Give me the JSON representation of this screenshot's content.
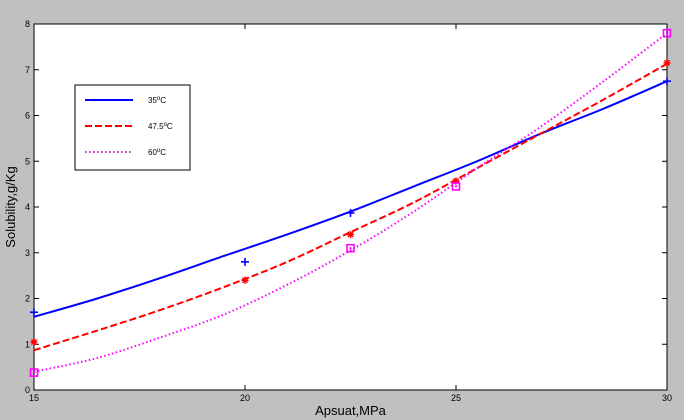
{
  "chart_data": {
    "type": "line",
    "title": "",
    "xlabel": "Apsuat,MPa",
    "ylabel": "Solubility,g/Kg",
    "xlim": [
      15,
      30
    ],
    "ylim": [
      0,
      8
    ],
    "x_ticks": [
      "15",
      "20",
      "25",
      "30"
    ],
    "y_ticks": [
      "0",
      "1",
      "2",
      "3",
      "4",
      "5",
      "6",
      "7",
      "8"
    ],
    "grid": false,
    "legend_position": "top-left",
    "series": [
      {
        "name": "35",
        "unit": "C",
        "color": "#0000ff",
        "style": "solid",
        "marker": "plus",
        "fit_x": [
          15,
          16.5,
          18,
          19.5,
          21,
          22.5,
          24,
          25.5,
          27,
          28.5,
          30
        ],
        "fit_y": [
          1.6,
          2.0,
          2.45,
          2.93,
          3.4,
          3.9,
          4.45,
          5.0,
          5.6,
          6.15,
          6.75
        ],
        "points_x": [
          15,
          20,
          22.5,
          30
        ],
        "points_y": [
          1.7,
          2.8,
          3.87,
          6.75
        ]
      },
      {
        "name": "47.5",
        "unit": "C",
        "color": "#ff0000",
        "style": "dashed",
        "marker": "star",
        "fit_x": [
          15,
          16.5,
          18,
          19.5,
          21,
          22.5,
          24,
          25.5,
          27,
          28.5,
          30
        ],
        "fit_y": [
          0.87,
          1.3,
          1.75,
          2.25,
          2.8,
          3.45,
          4.1,
          4.85,
          5.6,
          6.35,
          7.13
        ],
        "points_x": [
          15,
          20,
          22.5,
          25,
          30
        ],
        "points_y": [
          1.05,
          2.4,
          3.4,
          4.57,
          7.15
        ]
      },
      {
        "name": "60",
        "unit": "C",
        "color": "#ff00ff",
        "style": "dotted",
        "marker": "square",
        "fit_x": [
          15,
          16.5,
          18,
          19.5,
          21,
          22.5,
          24,
          25.5,
          27,
          28.5,
          30
        ],
        "fit_y": [
          0.4,
          0.7,
          1.15,
          1.65,
          2.3,
          3.05,
          3.9,
          4.85,
          5.75,
          6.75,
          7.8
        ],
        "points_x": [
          15,
          22.5,
          25,
          30
        ],
        "points_y": [
          0.38,
          3.1,
          4.45,
          7.8
        ]
      }
    ]
  },
  "legend": {
    "degree_symbol": "o"
  }
}
